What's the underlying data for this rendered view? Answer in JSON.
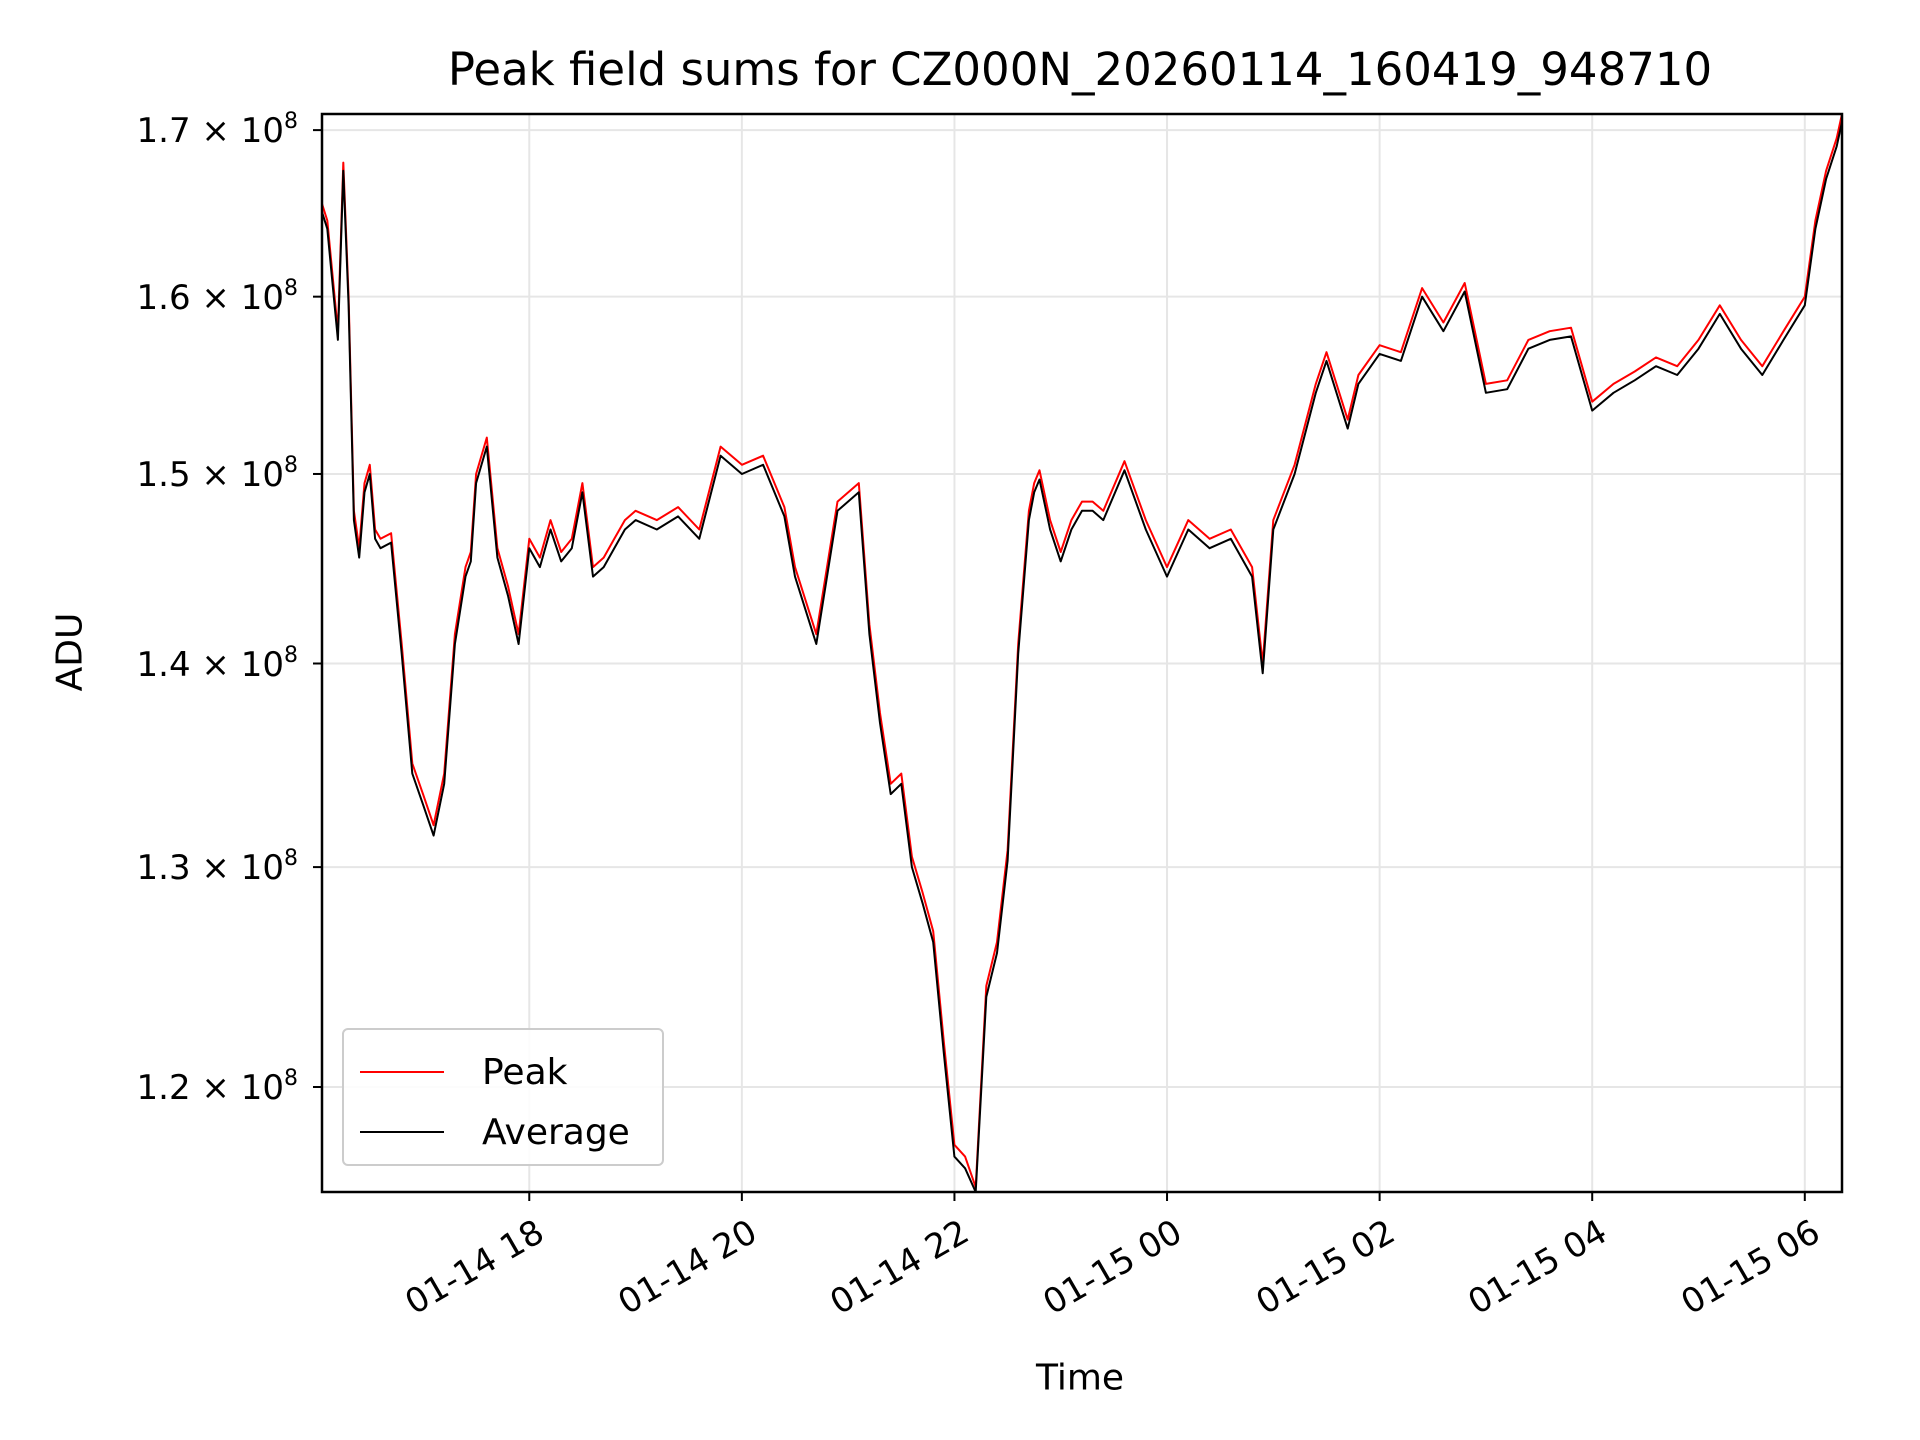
{
  "chart_data": {
    "type": "line",
    "title": "Peak field sums for CZ000N_20260114_160419_948710",
    "xlabel": "Time",
    "ylabel": "ADU",
    "x_range_hours": [
      16.05,
      30.35
    ],
    "ylim": [
      115500000,
      171000000
    ],
    "y_scale": "log",
    "grid": true,
    "legend_position": "lower-left",
    "y_ticks": [
      {
        "value": 120000000,
        "mantissa": "1.2",
        "times": "×",
        "base": "10",
        "exponent": "8"
      },
      {
        "value": 130000000,
        "mantissa": "1.3",
        "times": "×",
        "base": "10",
        "exponent": "8"
      },
      {
        "value": 140000000,
        "mantissa": "1.4",
        "times": "×",
        "base": "10",
        "exponent": "8"
      },
      {
        "value": 150000000,
        "mantissa": "1.5",
        "times": "×",
        "base": "10",
        "exponent": "8"
      },
      {
        "value": 160000000,
        "mantissa": "1.6",
        "times": "×",
        "base": "10",
        "exponent": "8"
      },
      {
        "value": 170000000,
        "mantissa": "1.7",
        "times": "×",
        "base": "10",
        "exponent": "8"
      }
    ],
    "x_ticks": [
      {
        "hour": 18,
        "label": "01-14 18"
      },
      {
        "hour": 20,
        "label": "01-14 20"
      },
      {
        "hour": 22,
        "label": "01-14 22"
      },
      {
        "hour": 24,
        "label": "01-15 00"
      },
      {
        "hour": 26,
        "label": "01-15 02"
      },
      {
        "hour": 28,
        "label": "01-15 04"
      },
      {
        "hour": 30,
        "label": "01-15 06"
      }
    ],
    "x_units": "hours since 2026-01-14 00:00",
    "series": [
      {
        "name": "Peak",
        "color": "#ff0000",
        "x": [
          16.05,
          16.1,
          16.2,
          16.25,
          16.3,
          16.35,
          16.4,
          16.45,
          16.5,
          16.55,
          16.6,
          16.7,
          16.8,
          16.9,
          17.0,
          17.1,
          17.2,
          17.3,
          17.4,
          17.45,
          17.5,
          17.6,
          17.7,
          17.8,
          17.9,
          18.0,
          18.1,
          18.2,
          18.3,
          18.4,
          18.5,
          18.6,
          18.7,
          18.8,
          18.9,
          19.0,
          19.2,
          19.4,
          19.6,
          19.8,
          20.0,
          20.2,
          20.4,
          20.5,
          20.7,
          20.9,
          21.1,
          21.2,
          21.3,
          21.4,
          21.5,
          21.6,
          21.7,
          21.8,
          21.9,
          22.0,
          22.1,
          22.2,
          22.3,
          22.4,
          22.5,
          22.6,
          22.7,
          22.75,
          22.8,
          22.9,
          23.0,
          23.1,
          23.2,
          23.3,
          23.4,
          23.6,
          23.8,
          24.0,
          24.2,
          24.4,
          24.6,
          24.8,
          24.9,
          25.0,
          25.2,
          25.4,
          25.5,
          25.7,
          25.8,
          26.0,
          26.2,
          26.4,
          26.6,
          26.8,
          27.0,
          27.2,
          27.4,
          27.6,
          27.8,
          28.0,
          28.2,
          28.4,
          28.6,
          28.8,
          29.0,
          29.2,
          29.4,
          29.6,
          29.8,
          30.0,
          30.1,
          30.2,
          30.3,
          30.35
        ],
        "values": [
          165500000,
          164500000,
          158000000,
          168000000,
          160000000,
          148000000,
          146000000,
          149500000,
          150500000,
          147000000,
          146500000,
          146800000,
          141000000,
          135000000,
          133500000,
          132000000,
          134500000,
          141500000,
          145000000,
          145800000,
          150000000,
          152000000,
          146000000,
          144000000,
          141500000,
          146500000,
          145500000,
          147500000,
          145800000,
          146500000,
          149500000,
          145000000,
          145500000,
          146500000,
          147500000,
          148000000,
          147500000,
          148200000,
          147000000,
          151500000,
          150500000,
          151000000,
          148200000,
          145000000,
          141500000,
          148500000,
          149500000,
          142000000,
          137500000,
          134000000,
          134500000,
          130500000,
          128800000,
          127000000,
          122000000,
          117500000,
          117000000,
          115700000,
          124500000,
          126500000,
          130800000,
          141000000,
          148000000,
          149500000,
          150200000,
          147500000,
          145800000,
          147500000,
          148500000,
          148500000,
          148000000,
          150700000,
          147500000,
          145000000,
          147500000,
          146500000,
          147000000,
          145000000,
          140000000,
          147500000,
          150500000,
          155000000,
          156800000,
          153000000,
          155500000,
          157200000,
          156800000,
          160500000,
          158500000,
          160800000,
          155000000,
          155200000,
          157500000,
          158000000,
          158200000,
          154000000,
          155000000,
          155700000,
          156500000,
          156000000,
          157500000,
          159500000,
          157500000,
          156000000,
          158000000,
          160000000,
          164500000,
          167500000,
          169500000,
          171000000
        ]
      },
      {
        "name": "Average",
        "color": "#000000",
        "x": [
          16.05,
          16.1,
          16.2,
          16.25,
          16.3,
          16.35,
          16.4,
          16.45,
          16.5,
          16.55,
          16.6,
          16.7,
          16.8,
          16.9,
          17.0,
          17.1,
          17.2,
          17.3,
          17.4,
          17.45,
          17.5,
          17.6,
          17.7,
          17.8,
          17.9,
          18.0,
          18.1,
          18.2,
          18.3,
          18.4,
          18.5,
          18.6,
          18.7,
          18.8,
          18.9,
          19.0,
          19.2,
          19.4,
          19.6,
          19.8,
          20.0,
          20.2,
          20.4,
          20.5,
          20.7,
          20.9,
          21.1,
          21.2,
          21.3,
          21.4,
          21.5,
          21.6,
          21.7,
          21.8,
          21.9,
          22.0,
          22.1,
          22.2,
          22.3,
          22.4,
          22.5,
          22.6,
          22.7,
          22.75,
          22.8,
          22.9,
          23.0,
          23.1,
          23.2,
          23.3,
          23.4,
          23.6,
          23.8,
          24.0,
          24.2,
          24.4,
          24.6,
          24.8,
          24.9,
          25.0,
          25.2,
          25.4,
          25.5,
          25.7,
          25.8,
          26.0,
          26.2,
          26.4,
          26.6,
          26.8,
          27.0,
          27.2,
          27.4,
          27.6,
          27.8,
          28.0,
          28.2,
          28.4,
          28.6,
          28.8,
          29.0,
          29.2,
          29.4,
          29.6,
          29.8,
          30.0,
          30.1,
          30.2,
          30.3,
          30.35
        ],
        "values": [
          165000000,
          164000000,
          157500000,
          167500000,
          159500000,
          147500000,
          145500000,
          149000000,
          150000000,
          146500000,
          146000000,
          146300000,
          140500000,
          134500000,
          133000000,
          131500000,
          134000000,
          141000000,
          144500000,
          145300000,
          149500000,
          151500000,
          145500000,
          143500000,
          141000000,
          146000000,
          145000000,
          147000000,
          145300000,
          146000000,
          149000000,
          144500000,
          145000000,
          146000000,
          147000000,
          147500000,
          147000000,
          147700000,
          146500000,
          151000000,
          150000000,
          150500000,
          147700000,
          144500000,
          141000000,
          148000000,
          149000000,
          141500000,
          137000000,
          133500000,
          134000000,
          130000000,
          128300000,
          126500000,
          121500000,
          117000000,
          116500000,
          115500000,
          124000000,
          126000000,
          130300000,
          140500000,
          147500000,
          149000000,
          149700000,
          147000000,
          145300000,
          147000000,
          148000000,
          148000000,
          147500000,
          150200000,
          147000000,
          144500000,
          147000000,
          146000000,
          146500000,
          144500000,
          139500000,
          147000000,
          150000000,
          154500000,
          156300000,
          152500000,
          155000000,
          156700000,
          156300000,
          160000000,
          158000000,
          160300000,
          154500000,
          154700000,
          157000000,
          157500000,
          157700000,
          153500000,
          154500000,
          155200000,
          156000000,
          155500000,
          157000000,
          159000000,
          157000000,
          155500000,
          157500000,
          159500000,
          164000000,
          167000000,
          169000000,
          170500000
        ]
      }
    ]
  }
}
